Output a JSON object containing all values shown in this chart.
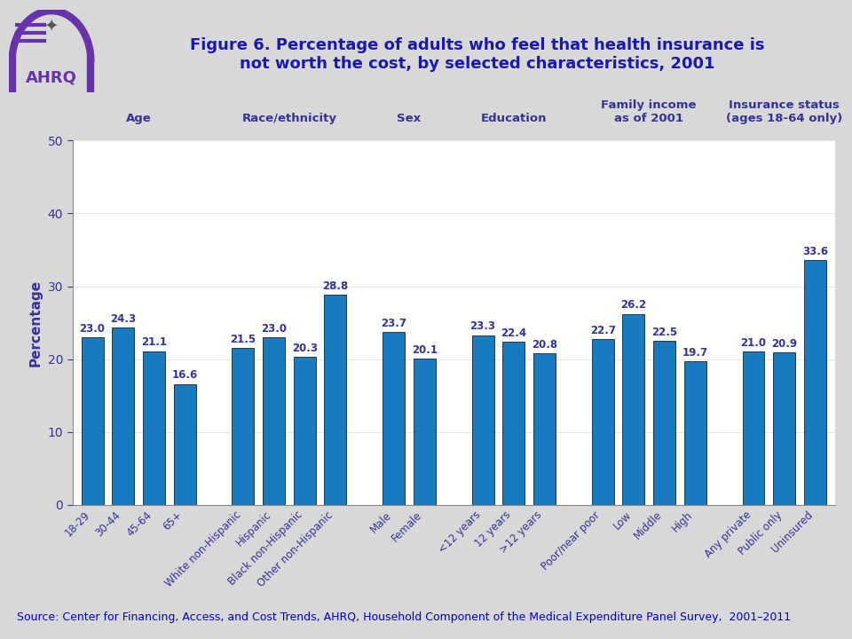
{
  "title_line1": "Figure 6. Percentage of adults who feel that health insurance is",
  "title_line2": "not worth the cost, by selected characteristics, 2001",
  "title_color": "#1a1aaa",
  "title_fontsize": 13,
  "ylabel": "Percentage",
  "ylabel_color": "#333399",
  "bar_color": "#1a7abf",
  "bar_edgecolor": "#000000",
  "background_color": "#d8d8d8",
  "plot_background": "#ffffff",
  "ylim": [
    0,
    50
  ],
  "yticks": [
    0,
    10,
    20,
    30,
    40,
    50
  ],
  "categories": [
    "18-29",
    "30-44",
    "45-64",
    "65+",
    "White non-Hispanic",
    "Hispanic",
    "Black non-Hispanic",
    "Other non-Hispanic",
    "Male",
    "Female",
    "<12 years",
    "12 years",
    ">12 years",
    "Poor/near poor",
    "Low",
    "Middle",
    "High",
    "Any private",
    "Public only",
    "Uninsured"
  ],
  "values": [
    23.0,
    24.3,
    21.1,
    16.6,
    21.5,
    23.0,
    20.3,
    28.8,
    23.7,
    20.1,
    23.3,
    22.4,
    20.8,
    22.7,
    26.2,
    22.5,
    19.7,
    21.0,
    20.9,
    33.6
  ],
  "group_labels": [
    "Age",
    "Race/ethnicity",
    "Sex",
    "Education",
    "Family income\nas of 2001",
    "Insurance status\n(ages 18-64 only)"
  ],
  "group_label_color": "#333399",
  "group_label_fontsize": 9.5,
  "group_sizes": [
    4,
    4,
    2,
    3,
    4,
    3
  ],
  "tick_color": "#333399",
  "source_text": "Source: Center for Financing, Access, and Cost Trends, AHRQ, Household Component of the Medical Expenditure Panel Survey,  2001–2011",
  "source_color": "#0000cc",
  "source_fontsize": 9,
  "value_label_color": "#333399",
  "value_label_fontsize": 8.5
}
